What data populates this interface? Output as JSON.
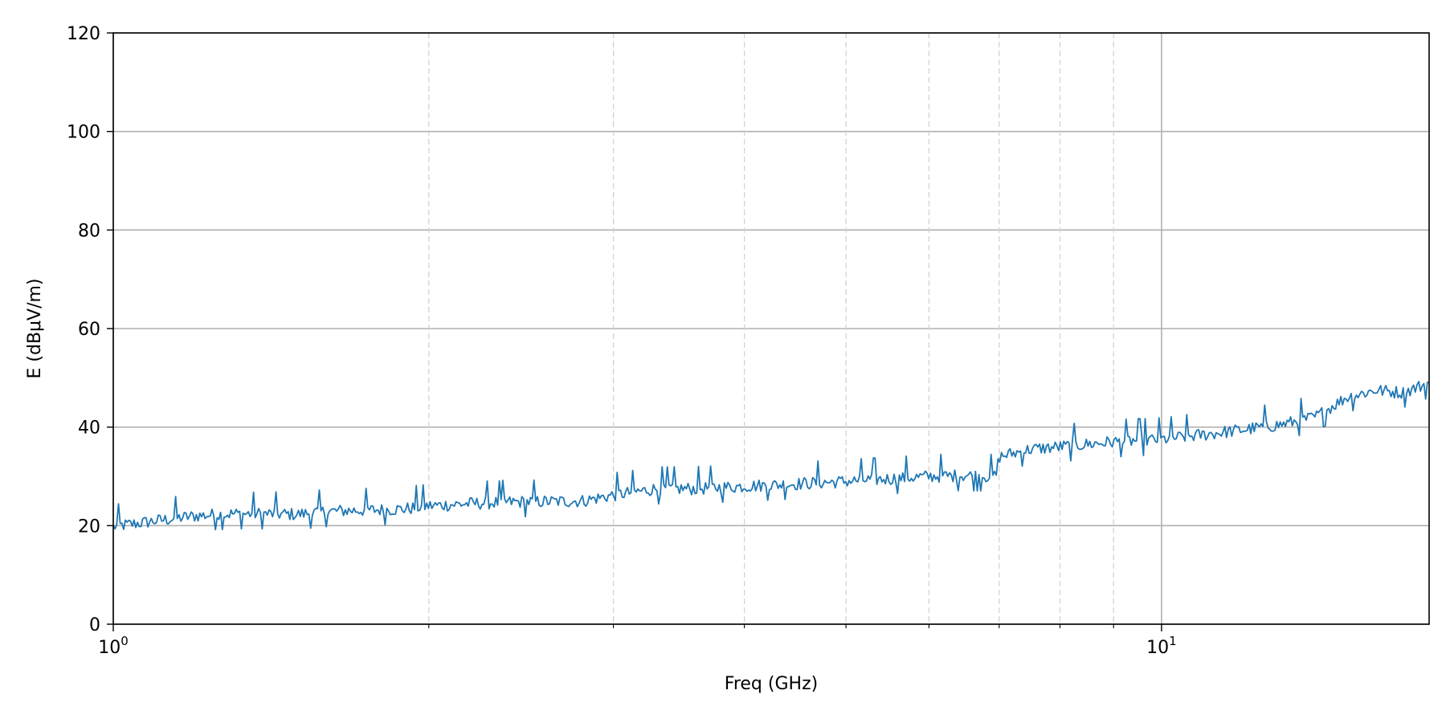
{
  "chart_data": {
    "type": "line",
    "title": "",
    "xlabel": "Freq (GHz)",
    "ylabel": "E (dBμV/m)",
    "x_scale": "log",
    "xlim": [
      1,
      18
    ],
    "ylim": [
      0,
      120
    ],
    "y_ticks": [
      0,
      20,
      40,
      60,
      80,
      100,
      120
    ],
    "x_major_ticks": [
      {
        "value": 1,
        "base": "10",
        "exp": "0"
      },
      {
        "value": 10,
        "base": "10",
        "exp": "1"
      }
    ],
    "x_minor_ticks": [
      2,
      3,
      4,
      5,
      6,
      7,
      8,
      9
    ],
    "grid": {
      "y_major": true,
      "x_major": true,
      "x_minor": true,
      "x_minor_style": "dashed"
    },
    "line_color": "#1f77b4",
    "series": [
      {
        "x": [
          1.0,
          1.1,
          1.2,
          1.3,
          1.4,
          1.5,
          1.6,
          1.7,
          1.8,
          1.9,
          2.0,
          2.2,
          2.4,
          2.6,
          2.8,
          3.0,
          3.3,
          3.6,
          4.0,
          4.5,
          5.0,
          5.5,
          6.0,
          6.5,
          6.95,
          7.0,
          7.5,
          8.0,
          9.0,
          10.0,
          11.0,
          12.0,
          13.0,
          14.0,
          15.0,
          16.0,
          17.0,
          18.0
        ],
        "y": [
          19.8,
          21.0,
          22.0,
          22.4,
          22.4,
          22.3,
          22.9,
          23.1,
          23.2,
          23.4,
          24.0,
          24.5,
          24.8,
          24.9,
          25.0,
          26.2,
          27.5,
          27.5,
          28.0,
          28.5,
          29.0,
          29.5,
          30.0,
          30.2,
          30.0,
          34.0,
          35.5,
          36.0,
          37.0,
          37.5,
          38.5,
          39.5,
          40.5,
          42.0,
          46.0,
          47.5,
          47.0,
          49.0
        ]
      }
    ]
  }
}
